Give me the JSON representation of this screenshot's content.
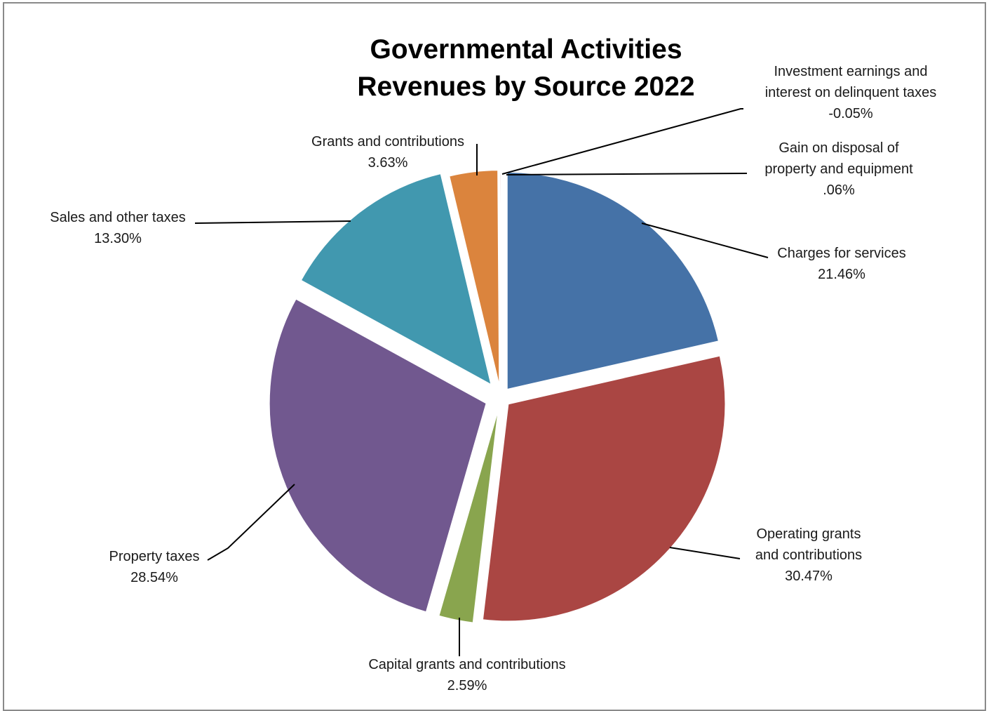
{
  "chart_data": {
    "type": "pie",
    "title": [
      "Governmental Activities",
      "Revenues by Source 2022"
    ],
    "slices": [
      {
        "name": "Charges for services",
        "value": 21.46,
        "label_lines": [
          "Charges for services",
          "21.46%"
        ],
        "color": "#4572a7"
      },
      {
        "name": "Operating grants and contributions",
        "value": 30.47,
        "label_lines": [
          "Operating grants",
          "and contributions",
          "30.47%"
        ],
        "color": "#aa4643"
      },
      {
        "name": "Capital grants and contributions",
        "value": 2.59,
        "label_lines": [
          "Capital grants and contributions",
          "2.59%"
        ],
        "color": "#89a54e"
      },
      {
        "name": "Property taxes",
        "value": 28.54,
        "label_lines": [
          "Property taxes",
          "28.54%"
        ],
        "color": "#71588f"
      },
      {
        "name": "Sales and other taxes",
        "value": 13.3,
        "label_lines": [
          "Sales and other taxes",
          "13.30%"
        ],
        "color": "#4198af"
      },
      {
        "name": "Grants and contributions",
        "value": 3.63,
        "label_lines": [
          "Grants and contributions",
          "3.63%"
        ],
        "color": "#db843d"
      },
      {
        "name": "Investment earnings and interest on delinquent taxes",
        "value": -0.05,
        "label_lines": [
          "Investment earnings and",
          "interest on delinquent taxes",
          "-0.05%"
        ],
        "color": "#93a9cf"
      },
      {
        "name": "Gain on disposal of property and equipment",
        "value": 0.06,
        "label_lines": [
          "Gain on disposal of",
          "property and equipment",
          ".06%"
        ],
        "color": "#d19392"
      }
    ],
    "legend": "none"
  }
}
